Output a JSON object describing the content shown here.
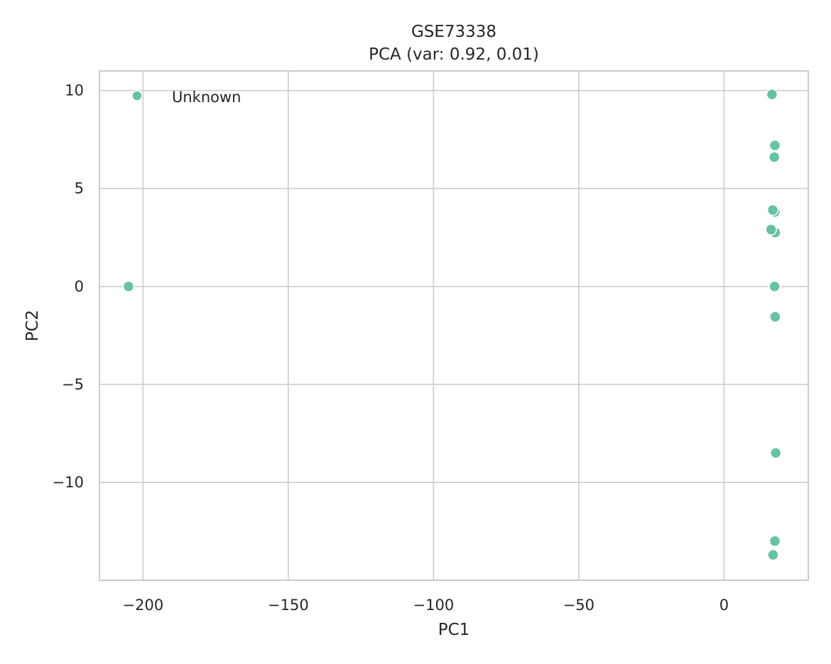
{
  "chart_data": {
    "type": "scatter",
    "title": "GSE73338",
    "subtitle": "PCA (var: 0.92, 0.01)",
    "xlabel": "PC1",
    "ylabel": "PC2",
    "xlim": [
      -215,
      29
    ],
    "ylim": [
      -15,
      11
    ],
    "xticks": [
      -200,
      -150,
      -100,
      -50,
      0
    ],
    "yticks": [
      -10,
      -5,
      0,
      5,
      10
    ],
    "xtick_labels": [
      "−200",
      "−150",
      "−100",
      "−50",
      "0"
    ],
    "ytick_labels": [
      "−10",
      "−5",
      "0",
      "5",
      "10"
    ],
    "grid": true,
    "legend": {
      "placement": "top-left",
      "entries": [
        "Unknown"
      ]
    },
    "series": [
      {
        "name": "Unknown",
        "color": "#66c2a5",
        "points": [
          [
            -205,
            0.0
          ],
          [
            16.5,
            9.8
          ],
          [
            17.5,
            7.2
          ],
          [
            17.3,
            6.6
          ],
          [
            17.5,
            3.8
          ],
          [
            16.8,
            3.9
          ],
          [
            17.6,
            2.75
          ],
          [
            16.2,
            2.9
          ],
          [
            17.4,
            0.0
          ],
          [
            17.6,
            -1.55
          ],
          [
            17.8,
            -8.5
          ],
          [
            17.5,
            -13.0
          ],
          [
            16.9,
            -13.7
          ]
        ]
      }
    ]
  }
}
